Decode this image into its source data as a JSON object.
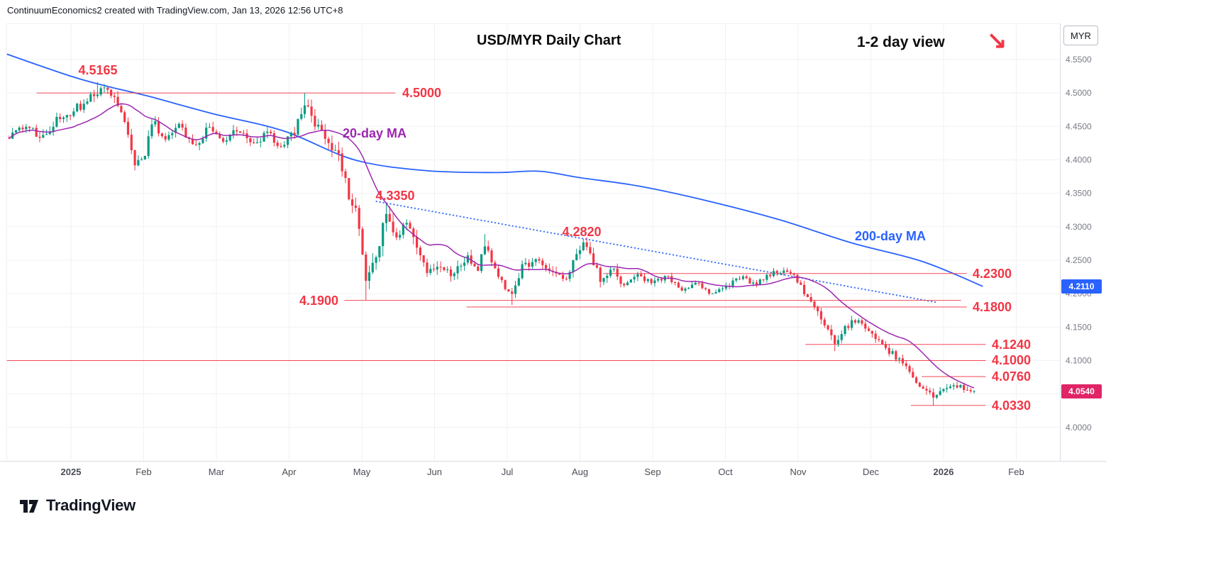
{
  "header": {
    "attribution": "ContinuumEconomics2 created with TradingView.com, Jan 13, 2026 12:56 UTC+8"
  },
  "chart": {
    "view_note": "1-2 day view",
    "arrow_icon": "↘",
    "currency_box": "MYR"
  },
  "footer": {
    "brand": "TradingView"
  },
  "colors": {
    "up": "#089981",
    "down": "#f23645",
    "ma20": "#9c27b0",
    "ma200": "#2962ff",
    "trendline": "#2962ff",
    "level": "#f23645",
    "level_label": "#f23645",
    "grid": "#f0f1f4",
    "frame": "#d9dce3",
    "axis_text": "#787b86",
    "time_text": "#4a4d57",
    "arrow": "#f23645",
    "tag_blue": "#2962ff",
    "tag_pink": "#e02466"
  },
  "chart_data": {
    "type": "candlestick",
    "title": "USD/MYR Daily Chart",
    "symbol": "USD/MYR",
    "timeframe": "Daily",
    "ylabel": "MYR",
    "xlabel": "",
    "grid": true,
    "legend_position": "on-chart",
    "ylim": [
      3.95,
      4.604
    ],
    "y_ticks": [
      4.55,
      4.5,
      4.45,
      4.4,
      4.35,
      4.3,
      4.25,
      4.2,
      4.15,
      4.1,
      4.05,
      4.0
    ],
    "x_ticks": [
      [
        0,
        "2025"
      ],
      [
        1,
        "Feb"
      ],
      [
        2,
        "Mar"
      ],
      [
        3,
        "Apr"
      ],
      [
        4,
        "May"
      ],
      [
        5,
        "Jun"
      ],
      [
        6,
        "Jul"
      ],
      [
        7,
        "Aug"
      ],
      [
        8,
        "Sep"
      ],
      [
        9,
        "Oct"
      ],
      [
        10,
        "Nov"
      ],
      [
        11,
        "Dec"
      ],
      [
        12,
        "2026"
      ],
      [
        13,
        "Feb"
      ]
    ],
    "t_range": [
      -0.85,
      12.42
    ],
    "candle_count": 285,
    "noise_seed": 11,
    "last_price": 4.054,
    "price_path_anchors": [
      [
        -0.85,
        4.435
      ],
      [
        -0.6,
        4.452
      ],
      [
        -0.4,
        4.432
      ],
      [
        -0.2,
        4.458
      ],
      [
        0.1,
        4.478
      ],
      [
        0.35,
        4.505
      ],
      [
        0.55,
        4.498
      ],
      [
        0.7,
        4.468
      ],
      [
        0.8,
        4.432
      ],
      [
        0.87,
        4.39
      ],
      [
        1.0,
        4.405
      ],
      [
        1.12,
        4.458
      ],
      [
        1.3,
        4.43
      ],
      [
        1.5,
        4.452
      ],
      [
        1.7,
        4.412
      ],
      [
        1.9,
        4.455
      ],
      [
        2.1,
        4.43
      ],
      [
        2.3,
        4.448
      ],
      [
        2.5,
        4.42
      ],
      [
        2.7,
        4.44
      ],
      [
        2.9,
        4.415
      ],
      [
        3.1,
        4.448
      ],
      [
        3.23,
        4.488
      ],
      [
        3.35,
        4.455
      ],
      [
        3.5,
        4.43
      ],
      [
        3.65,
        4.415
      ],
      [
        3.8,
        4.355
      ],
      [
        3.95,
        4.31
      ],
      [
        4.07,
        4.215
      ],
      [
        4.2,
        4.26
      ],
      [
        4.33,
        4.322
      ],
      [
        4.45,
        4.28
      ],
      [
        4.6,
        4.305
      ],
      [
        4.75,
        4.27
      ],
      [
        4.9,
        4.225
      ],
      [
        5.05,
        4.24
      ],
      [
        5.25,
        4.232
      ],
      [
        5.45,
        4.252
      ],
      [
        5.6,
        4.238
      ],
      [
        5.7,
        4.278
      ],
      [
        5.82,
        4.24
      ],
      [
        5.95,
        4.215
      ],
      [
        6.07,
        4.198
      ],
      [
        6.2,
        4.238
      ],
      [
        6.4,
        4.25
      ],
      [
        6.6,
        4.235
      ],
      [
        6.78,
        4.222
      ],
      [
        6.95,
        4.252
      ],
      [
        7.05,
        4.278
      ],
      [
        7.17,
        4.252
      ],
      [
        7.3,
        4.215
      ],
      [
        7.45,
        4.235
      ],
      [
        7.6,
        4.208
      ],
      [
        7.8,
        4.225
      ],
      [
        8.0,
        4.215
      ],
      [
        8.2,
        4.225
      ],
      [
        8.4,
        4.205
      ],
      [
        8.6,
        4.215
      ],
      [
        8.8,
        4.196
      ],
      [
        9.0,
        4.21
      ],
      [
        9.2,
        4.225
      ],
      [
        9.4,
        4.215
      ],
      [
        9.6,
        4.228
      ],
      [
        9.8,
        4.235
      ],
      [
        9.95,
        4.225
      ],
      [
        10.1,
        4.2
      ],
      [
        10.25,
        4.173
      ],
      [
        10.4,
        4.148
      ],
      [
        10.52,
        4.126
      ],
      [
        10.65,
        4.148
      ],
      [
        10.8,
        4.162
      ],
      [
        10.95,
        4.147
      ],
      [
        11.1,
        4.132
      ],
      [
        11.25,
        4.115
      ],
      [
        11.4,
        4.1
      ],
      [
        11.55,
        4.082
      ],
      [
        11.7,
        4.062
      ],
      [
        11.85,
        4.047
      ],
      [
        11.97,
        4.052
      ],
      [
        12.1,
        4.063
      ],
      [
        12.25,
        4.06
      ],
      [
        12.42,
        4.054
      ]
    ],
    "volatility_anchors": [
      [
        -0.9,
        0.0075
      ],
      [
        1.0,
        0.009
      ],
      [
        2.0,
        0.007
      ],
      [
        3.0,
        0.008
      ],
      [
        3.8,
        0.012
      ],
      [
        4.3,
        0.014
      ],
      [
        4.8,
        0.01
      ],
      [
        5.5,
        0.008
      ],
      [
        6.5,
        0.007
      ],
      [
        7.2,
        0.008
      ],
      [
        8.0,
        0.005
      ],
      [
        9.0,
        0.0045
      ],
      [
        9.9,
        0.0045
      ],
      [
        10.4,
        0.008
      ],
      [
        11.0,
        0.006
      ],
      [
        11.8,
        0.006
      ],
      [
        12.42,
        0.005
      ]
    ],
    "forced_extremes": [
      {
        "t": 0.35,
        "high": 4.5165
      },
      {
        "t": 3.23,
        "high": 4.5
      },
      {
        "t": 4.07,
        "low": 4.19
      },
      {
        "t": 4.33,
        "high": 4.335
      },
      {
        "t": 5.7,
        "high": 4.289
      },
      {
        "t": 6.07,
        "low": 4.183
      },
      {
        "t": 7.05,
        "high": 4.282
      },
      {
        "t": 10.52,
        "low": 4.114
      },
      {
        "t": 11.85,
        "low": 4.033
      },
      {
        "t": 12.42,
        "close": 4.054
      }
    ],
    "moving_averages": [
      {
        "label": "20-day MA",
        "period": 20,
        "current": null
      },
      {
        "label": "200-day MA",
        "period": 200,
        "current": 4.211
      }
    ],
    "ma200_anchors": [
      [
        -0.88,
        4.558
      ],
      [
        0,
        4.525
      ],
      [
        0.5,
        4.51
      ],
      [
        1.07,
        4.495
      ],
      [
        1.95,
        4.469
      ],
      [
        2.93,
        4.443
      ],
      [
        3.9,
        4.4
      ],
      [
        4.88,
        4.384
      ],
      [
        5.85,
        4.381
      ],
      [
        6.44,
        4.383
      ],
      [
        7.02,
        4.373
      ],
      [
        7.8,
        4.361
      ],
      [
        8.78,
        4.338
      ],
      [
        9.76,
        4.31
      ],
      [
        10.73,
        4.276
      ],
      [
        11.71,
        4.248
      ],
      [
        12.54,
        4.211
      ]
    ],
    "trendline": {
      "from": [
        4.2,
        4.338
      ],
      "to": [
        11.9,
        4.187
      ],
      "style": "dotted"
    },
    "levels": [
      {
        "label": "4.5165",
        "value": 4.5165,
        "line": null,
        "label_t": 0.37,
        "label_price": 4.534,
        "align": "center"
      },
      {
        "label": "4.5000",
        "value": 4.5,
        "line": [
          -0.47,
          4.46
        ],
        "label_t": 4.56,
        "label_price": 4.5,
        "align": "start"
      },
      {
        "label": "4.3350",
        "value": 4.335,
        "line": null,
        "label_t": 4.46,
        "label_price": 4.346,
        "align": "center"
      },
      {
        "label": "4.2820",
        "value": 4.282,
        "line": null,
        "label_t": 7.02,
        "label_price": 4.292,
        "align": "center"
      },
      {
        "label": "4.2300",
        "value": 4.23,
        "line": [
          7.32,
          12.32
        ],
        "label_t": 12.4,
        "label_price": 4.23,
        "align": "start"
      },
      {
        "label": "4.1900",
        "value": 4.19,
        "line": [
          3.76,
          12.24
        ],
        "label_t": 3.68,
        "label_price": 4.19,
        "align": "end"
      },
      {
        "label": "4.1800",
        "value": 4.18,
        "line": [
          5.44,
          12.32
        ],
        "label_t": 12.4,
        "label_price": 4.18,
        "align": "start"
      },
      {
        "label": "4.1240",
        "value": 4.124,
        "line": [
          10.1,
          12.58
        ],
        "label_t": 12.66,
        "label_price": 4.124,
        "align": "start"
      },
      {
        "label": "4.1000",
        "value": 4.1,
        "line": [
          -0.88,
          12.58
        ],
        "label_t": 12.66,
        "label_price": 4.1,
        "align": "start"
      },
      {
        "label": "4.0760",
        "value": 4.076,
        "line": [
          11.7,
          12.58
        ],
        "label_t": 12.66,
        "label_price": 4.076,
        "align": "start"
      },
      {
        "label": "4.0330",
        "value": 4.033,
        "line": [
          11.55,
          12.58
        ],
        "label_t": 12.66,
        "label_price": 4.033,
        "align": "start"
      }
    ],
    "price_tags": [
      {
        "name": "ma200-price-tag",
        "value": "4.2110",
        "price": 4.211,
        "color": "#2962ff"
      },
      {
        "name": "last-price-tag",
        "value": "4.0540",
        "price": 4.054,
        "color": "#e02466"
      }
    ]
  }
}
